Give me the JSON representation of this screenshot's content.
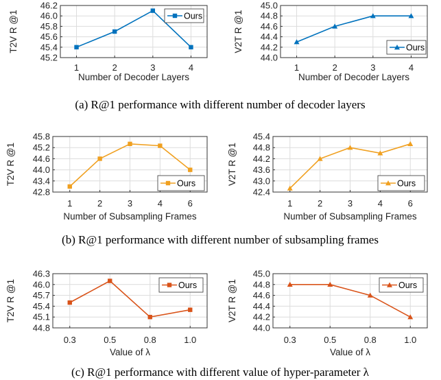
{
  "chart_data": [
    {
      "type": "line",
      "panel": "a-left",
      "categories": [
        "1",
        "2",
        "3",
        "4"
      ],
      "series": [
        {
          "name": "Ours",
          "values": [
            45.4,
            45.7,
            46.1,
            45.4
          ]
        }
      ],
      "xlabel": "Number of Decoder Layers",
      "ylabel": "T2V R @1",
      "ylim": [
        45.2,
        46.2
      ],
      "yticks": [
        "45.2",
        "45.4",
        "45.6",
        "45.8",
        "46.0",
        "46.2"
      ],
      "marker": "square",
      "color": "#0072BD",
      "grid": true,
      "legend": "top-right"
    },
    {
      "type": "line",
      "panel": "a-right",
      "categories": [
        "1",
        "2",
        "3",
        "4"
      ],
      "series": [
        {
          "name": "Ours",
          "values": [
            44.3,
            44.6,
            44.8,
            44.8
          ]
        }
      ],
      "xlabel": "Number of Decoder Layers",
      "ylabel": "V2T R @1",
      "ylim": [
        44.0,
        45.0
      ],
      "yticks": [
        "44.0",
        "44.2",
        "44.4",
        "44.6",
        "44.8",
        "45.0"
      ],
      "marker": "triangle",
      "color": "#0072BD",
      "grid": true,
      "legend": "bottom-right"
    },
    {
      "type": "line",
      "panel": "b-left",
      "categories": [
        "1",
        "2",
        "3",
        "4",
        "6"
      ],
      "series": [
        {
          "name": "Ours",
          "values": [
            43.1,
            44.6,
            45.4,
            45.3,
            44.0
          ]
        }
      ],
      "xlabel": "Number of Subsampling Frames",
      "ylabel": "T2V R @1",
      "ylim": [
        42.8,
        45.8
      ],
      "yticks": [
        "42.8",
        "43.4",
        "44.0",
        "44.6",
        "45.2",
        "45.8"
      ],
      "marker": "square",
      "color": "#F0A020",
      "grid": true,
      "legend": "bottom-right"
    },
    {
      "type": "line",
      "panel": "b-right",
      "categories": [
        "1",
        "2",
        "3",
        "4",
        "6"
      ],
      "series": [
        {
          "name": "Ours",
          "values": [
            42.6,
            44.2,
            44.8,
            44.5,
            45.0
          ]
        }
      ],
      "xlabel": "Number of Subsampling Frames",
      "ylabel": "V2T R @1",
      "ylim": [
        42.4,
        45.4
      ],
      "yticks": [
        "42.4",
        "43.0",
        "43.6",
        "44.2",
        "44.8",
        "45.4"
      ],
      "marker": "triangle",
      "color": "#F0A020",
      "grid": true,
      "legend": "bottom-right"
    },
    {
      "type": "line",
      "panel": "c-left",
      "categories": [
        "0.3",
        "0.5",
        "0.8",
        "1.0"
      ],
      "series": [
        {
          "name": "Ours",
          "values": [
            45.5,
            46.1,
            45.1,
            45.3
          ]
        }
      ],
      "xlabel": "Value of λ",
      "ylabel": "T2V R @1",
      "ylim": [
        44.8,
        46.3
      ],
      "yticks": [
        "44.8",
        "45.1",
        "45.4",
        "45.7",
        "46.0",
        "46.3"
      ],
      "marker": "square",
      "color": "#D95319",
      "grid": true,
      "legend": "top-right"
    },
    {
      "type": "line",
      "panel": "c-right",
      "categories": [
        "0.3",
        "0.5",
        "0.8",
        "1.0"
      ],
      "series": [
        {
          "name": "Ours",
          "values": [
            44.8,
            44.8,
            44.6,
            44.2
          ]
        }
      ],
      "xlabel": "Value of λ",
      "ylabel": "V2T R @1",
      "ylim": [
        44.0,
        45.0
      ],
      "yticks": [
        "44.0",
        "44.2",
        "44.4",
        "44.6",
        "44.8",
        "45.0"
      ],
      "marker": "triangle",
      "color": "#D95319",
      "grid": true,
      "legend": "top-right"
    }
  ],
  "captions": [
    "(a) R@1 performance with different number of decoder layers",
    "(b) R@1 performance with different number of subsampling frames",
    "(c) R@1 performance with different value of hyper-parameter λ"
  ]
}
